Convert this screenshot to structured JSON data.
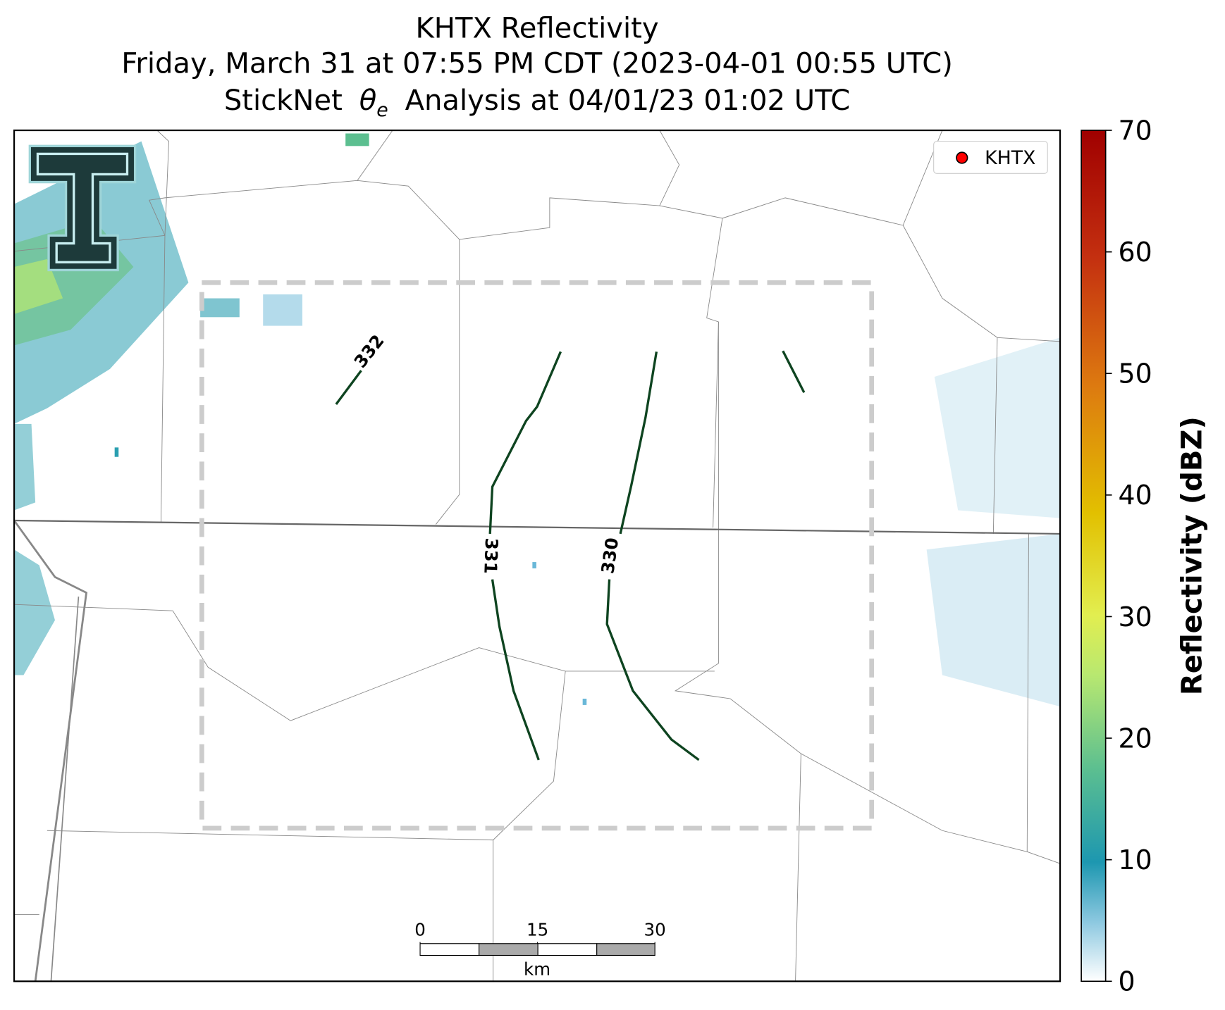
{
  "title": {
    "line1": "KHTX Reflectivity",
    "line2": "Friday, March 31 at 07:55 PM CDT (2023-04-01 00:55 UTC)",
    "line3": {
      "prefix": "StickNet",
      "symbol": "θ",
      "subscript": "e",
      "suffix": "Analysis at 04/01/23 01:02 UTC"
    }
  },
  "legend": {
    "label": "KHTX",
    "color": "#ff0000"
  },
  "contours": [
    {
      "label": 332
    },
    {
      "label": 331
    },
    {
      "label": 330
    }
  ],
  "colorbar": {
    "label": "Reflectivity (dBZ)",
    "lim": [
      0,
      70
    ],
    "ticks": [
      0,
      10,
      20,
      30,
      40,
      50,
      60,
      70
    ]
  },
  "scale_bar": {
    "ticks": [
      0,
      15,
      30
    ],
    "unit": "km"
  }
}
